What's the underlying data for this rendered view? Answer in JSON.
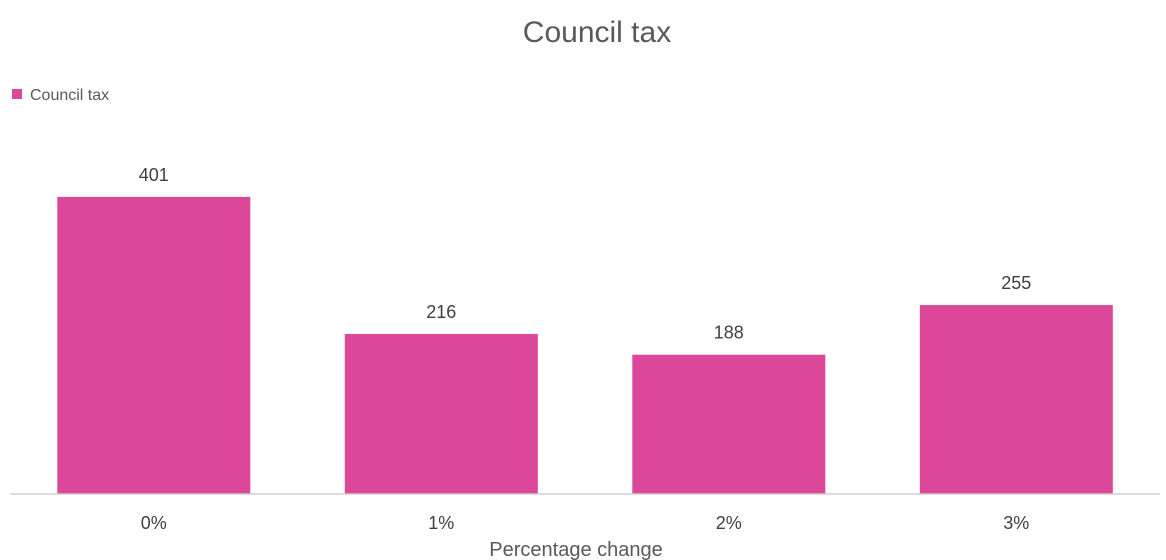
{
  "chart_data": {
    "type": "bar",
    "title": "Council tax",
    "xlabel": "Percentage change",
    "ylabel": "",
    "categories": [
      "0%",
      "1%",
      "2%",
      "3%"
    ],
    "series": [
      {
        "name": "Council tax",
        "values": [
          401,
          216,
          188,
          255
        ]
      }
    ],
    "ylim": [
      0,
      450
    ],
    "grid": false,
    "legend_position": "top-left",
    "colors": {
      "bar": "#dc4799",
      "axis": "#d0d0d0"
    }
  }
}
